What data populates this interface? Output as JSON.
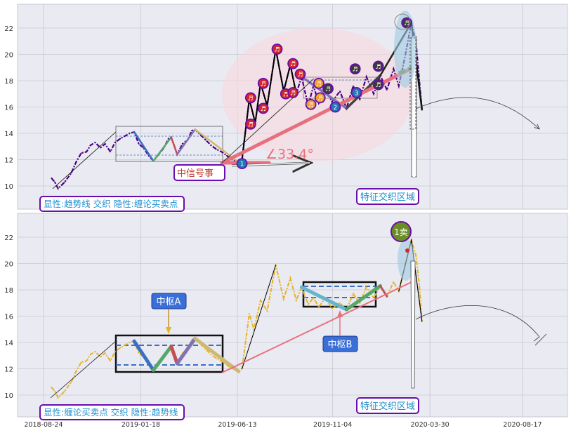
{
  "colors": {
    "background": "#eaeaf2",
    "grid": "#c8c8d0",
    "price_top": "#4b0082",
    "price_bottom": "#e6b422",
    "trend_line": "#e8707e",
    "stroke_black": "#000000",
    "zhongshu_blue": "#3a6fc4",
    "leg_green": "#55a868",
    "leg_red": "#c44e52",
    "leg_purple": "#8172b2",
    "leg_khaki": "#ccb974",
    "leg_teal": "#64b5cd",
    "ellipse": "#f7d7dc",
    "label_border": "#6a0dad",
    "label_text": "#1f8fcf",
    "callout_bg": "#3a6fd8",
    "marker_red": "#d62728",
    "marker_orange": "#f0a030",
    "marker_blue": "#1f77b4",
    "marker_dark": "#3b3b3b",
    "sell_green": "#6b8e23"
  },
  "chart_data": [
    {
      "type": "line",
      "panel": "top",
      "x_ticks": [],
      "y_ticks": [
        "10",
        "12",
        "14",
        "16",
        "18",
        "20",
        "22"
      ],
      "ylim": [
        8.4,
        23.8
      ],
      "grid": true,
      "series": [
        {
          "points": [
            [
              "2018-09-05",
              10.6
            ],
            [
              "2018-09-10",
              10.3
            ],
            [
              "2018-09-15",
              9.8
            ],
            [
              "2018-09-25",
              10.3
            ],
            [
              "2018-10-05",
              11.0
            ],
            [
              "2018-10-12",
              11.8
            ],
            [
              "2018-10-20",
              12.5
            ],
            [
              "2018-10-28",
              12.6
            ],
            [
              "2018-11-03",
              13.1
            ],
            [
              "2018-11-10",
              13.3
            ],
            [
              "2018-11-18",
              12.9
            ],
            [
              "2018-11-25",
              13.2
            ],
            [
              "2018-12-03",
              12.6
            ],
            [
              "2018-12-10",
              13.3
            ],
            [
              "2018-12-18",
              13.6
            ],
            [
              "2018-12-25",
              13.8
            ],
            [
              "2019-01-01",
              14.0
            ],
            [
              "2019-01-08",
              14.1
            ],
            [
              "2019-01-15",
              13.2
            ],
            [
              "2019-01-22",
              12.9
            ],
            [
              "2019-01-30",
              12.3
            ],
            [
              "2019-02-06",
              11.9
            ],
            [
              "2019-02-14",
              12.4
            ],
            [
              "2019-02-22",
              12.9
            ],
            [
              "2019-03-01",
              13.6
            ],
            [
              "2019-03-05",
              13.7
            ],
            [
              "2019-03-10",
              13.0
            ],
            [
              "2019-03-14",
              12.4
            ],
            [
              "2019-03-22",
              13.2
            ],
            [
              "2019-03-30",
              13.5
            ],
            [
              "2019-04-05",
              14.2
            ],
            [
              "2019-04-10",
              14.3
            ],
            [
              "2019-04-18",
              13.9
            ],
            [
              "2019-04-26",
              13.5
            ],
            [
              "2019-05-04",
              13.1
            ],
            [
              "2019-05-12",
              12.8
            ],
            [
              "2019-05-20",
              12.6
            ],
            [
              "2019-05-28",
              12.3
            ],
            [
              "2019-06-05",
              12.0
            ],
            [
              "2019-06-15",
              11.8
            ]
          ]
        },
        {
          "points": [
            [
              "2019-06-20",
              12.0
            ],
            [
              "2019-07-01",
              16.6
            ],
            [
              "2019-07-10",
              14.8
            ],
            [
              "2019-07-18",
              17.8
            ],
            [
              "2019-07-28",
              16.1
            ],
            [
              "2019-08-10",
              20.4
            ],
            [
              "2019-08-22",
              17.2
            ],
            [
              "2019-09-01",
              19.2
            ],
            [
              "2019-09-10",
              17.0
            ],
            [
              "2019-09-18",
              18.3
            ],
            [
              "2019-09-28",
              16.1
            ],
            [
              "2019-10-06",
              17.6
            ],
            [
              "2019-10-14",
              16.3
            ],
            [
              "2019-10-24",
              17.4
            ],
            [
              "2019-11-03",
              16.4
            ],
            [
              "2019-11-15",
              17.2
            ],
            [
              "2019-11-25",
              15.9
            ],
            [
              "2019-12-05",
              17.6
            ],
            [
              "2019-12-15",
              16.6
            ],
            [
              "2019-12-25",
              18.3
            ],
            [
              "2020-01-05",
              17.0
            ],
            [
              "2020-01-15",
              18.4
            ],
            [
              "2020-01-25",
              17.3
            ],
            [
              "2020-02-04",
              18.9
            ],
            [
              "2020-02-12",
              17.6
            ],
            [
              "2020-02-22",
              20.0
            ],
            [
              "2020-03-02",
              22.4
            ],
            [
              "2020-03-09",
              20.9
            ],
            [
              "2020-03-14",
              18.0
            ],
            [
              "2020-03-18",
              15.8
            ]
          ]
        }
      ]
    },
    {
      "type": "line",
      "panel": "bottom",
      "x_ticks": [
        "2018-08-24",
        "2019-01-18",
        "2019-06-13",
        "2019-11-04",
        "2020-03-30",
        "2020-08-17"
      ],
      "y_ticks": [
        "10",
        "12",
        "14",
        "16",
        "18",
        "20",
        "22"
      ],
      "ylim": [
        8.4,
        23.8
      ],
      "grid": true,
      "series": [
        {
          "points": [
            [
              "2018-09-05",
              10.6
            ],
            [
              "2018-09-10",
              10.3
            ],
            [
              "2018-09-15",
              9.8
            ],
            [
              "2018-09-25",
              10.3
            ],
            [
              "2018-10-05",
              11.0
            ],
            [
              "2018-10-12",
              11.8
            ],
            [
              "2018-10-20",
              12.5
            ],
            [
              "2018-10-28",
              12.6
            ],
            [
              "2018-11-03",
              13.1
            ],
            [
              "2018-11-10",
              13.3
            ],
            [
              "2018-11-18",
              12.9
            ],
            [
              "2018-11-25",
              13.2
            ],
            [
              "2018-12-03",
              12.6
            ],
            [
              "2018-12-10",
              13.3
            ],
            [
              "2018-12-18",
              13.6
            ],
            [
              "2018-12-25",
              13.8
            ],
            [
              "2019-01-01",
              14.0
            ],
            [
              "2019-01-08",
              14.1
            ],
            [
              "2019-01-15",
              13.2
            ],
            [
              "2019-01-22",
              12.9
            ],
            [
              "2019-01-30",
              12.3
            ],
            [
              "2019-02-06",
              11.9
            ],
            [
              "2019-02-14",
              12.4
            ],
            [
              "2019-02-22",
              12.9
            ],
            [
              "2019-03-01",
              13.6
            ],
            [
              "2019-03-05",
              13.7
            ],
            [
              "2019-03-10",
              13.0
            ],
            [
              "2019-03-14",
              12.4
            ],
            [
              "2019-03-22",
              13.2
            ],
            [
              "2019-03-30",
              13.5
            ],
            [
              "2019-04-05",
              14.2
            ],
            [
              "2019-04-10",
              14.3
            ],
            [
              "2019-04-18",
              13.9
            ],
            [
              "2019-04-26",
              13.5
            ],
            [
              "2019-05-04",
              13.1
            ],
            [
              "2019-05-12",
              12.8
            ],
            [
              "2019-05-20",
              12.6
            ],
            [
              "2019-05-28",
              12.3
            ],
            [
              "2019-06-05",
              12.0
            ],
            [
              "2019-06-15",
              11.8
            ],
            [
              "2019-06-20",
              12.0
            ],
            [
              "2019-07-01",
              16.2
            ],
            [
              "2019-07-08",
              15.0
            ],
            [
              "2019-07-18",
              17.2
            ],
            [
              "2019-07-28",
              16.4
            ],
            [
              "2019-08-10",
              19.9
            ],
            [
              "2019-08-22",
              17.3
            ],
            [
              "2019-09-01",
              18.9
            ],
            [
              "2019-09-10",
              17.2
            ],
            [
              "2019-09-18",
              18.2
            ],
            [
              "2019-09-28",
              16.9
            ],
            [
              "2019-10-06",
              17.4
            ],
            [
              "2019-10-14",
              16.7
            ],
            [
              "2019-10-24",
              17.4
            ],
            [
              "2019-11-03",
              16.6
            ],
            [
              "2019-11-15",
              17.0
            ],
            [
              "2019-11-25",
              16.5
            ],
            [
              "2019-12-05",
              17.7
            ],
            [
              "2019-12-15",
              17.0
            ],
            [
              "2019-12-25",
              18.2
            ],
            [
              "2020-01-05",
              17.4
            ],
            [
              "2020-01-15",
              18.3
            ],
            [
              "2020-01-25",
              17.5
            ],
            [
              "2020-02-04",
              18.6
            ],
            [
              "2020-02-12",
              17.9
            ],
            [
              "2020-02-22",
              20.0
            ],
            [
              "2020-03-02",
              21.8
            ],
            [
              "2020-03-09",
              20.6
            ],
            [
              "2020-03-14",
              18.4
            ],
            [
              "2020-03-18",
              15.6
            ]
          ]
        }
      ]
    }
  ],
  "annotations": {
    "top_angle_label": "∠33.4°",
    "top_event_label": "中信号事",
    "top_feature_label": "特征交织区域",
    "top_legend_label": "显性:趋势线 交织 隐性:缠论买卖点",
    "bottom_zhongshu_a": "中枢A",
    "bottom_zhongshu_b": "中枢B",
    "bottom_sell_label": "1卖",
    "bottom_feature_label": "特征交织区域",
    "bottom_legend_label": "显性:缠论买卖点 交织 隐性:趋势线",
    "marker_note": "♬",
    "marker_num_1": "1",
    "marker_num_2": "2",
    "marker_num_3": "3"
  }
}
